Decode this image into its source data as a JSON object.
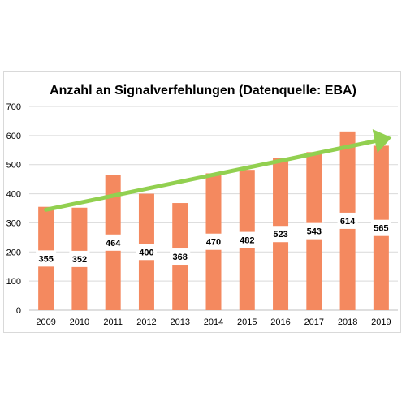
{
  "chart_data": {
    "type": "bar",
    "title": "Anzahl an Signalverfehlungen (Datenquelle: EBA)",
    "xlabel": "",
    "ylabel": "",
    "categories": [
      "2009",
      "2010",
      "2011",
      "2012",
      "2013",
      "2014",
      "2015",
      "2016",
      "2017",
      "2018",
      "2019"
    ],
    "values": [
      355,
      352,
      464,
      400,
      368,
      470,
      482,
      523,
      543,
      614,
      565
    ],
    "ylim": [
      0,
      700
    ],
    "yticks": [
      "0",
      "100",
      "200",
      "300",
      "400",
      "500",
      "600",
      "700"
    ],
    "grid": true,
    "bar_color": "#f4895f",
    "trend_color": "#92d050",
    "trend_start": [
      2009,
      345
    ],
    "trend_end": [
      2019,
      590
    ]
  }
}
